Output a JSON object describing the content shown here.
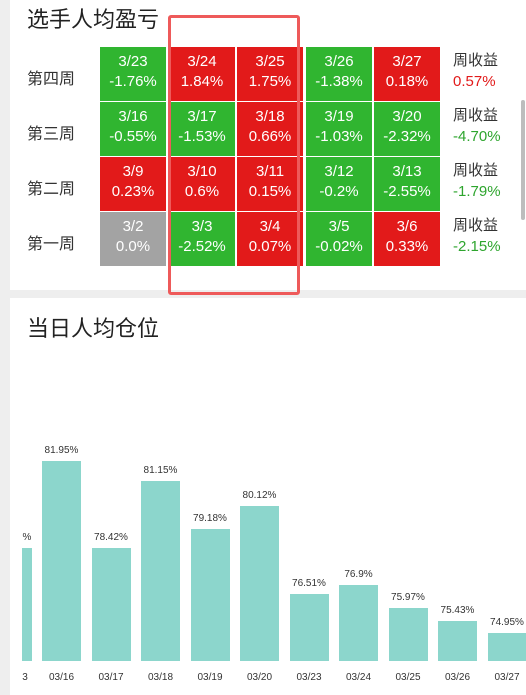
{
  "sections": {
    "profit_title": "选手人均盈亏",
    "position_title": "当日人均仓位"
  },
  "weeks": [
    {
      "label": "第四周",
      "weekly_label": "周收益",
      "weekly_value": "0.57%",
      "weekly_color": "red",
      "days": [
        {
          "date": "3/23",
          "pct": "-1.76%",
          "color": "green"
        },
        {
          "date": "3/24",
          "pct": "1.84%",
          "color": "red"
        },
        {
          "date": "3/25",
          "pct": "1.75%",
          "color": "red"
        },
        {
          "date": "3/26",
          "pct": "-1.38%",
          "color": "green"
        },
        {
          "date": "3/27",
          "pct": "0.18%",
          "color": "red"
        }
      ]
    },
    {
      "label": "第三周",
      "weekly_label": "周收益",
      "weekly_value": "-4.70%",
      "weekly_color": "green",
      "days": [
        {
          "date": "3/16",
          "pct": "-0.55%",
          "color": "green"
        },
        {
          "date": "3/17",
          "pct": "-1.53%",
          "color": "green"
        },
        {
          "date": "3/18",
          "pct": "0.66%",
          "color": "red"
        },
        {
          "date": "3/19",
          "pct": "-1.03%",
          "color": "green"
        },
        {
          "date": "3/20",
          "pct": "-2.32%",
          "color": "green"
        }
      ]
    },
    {
      "label": "第二周",
      "weekly_label": "周收益",
      "weekly_value": "-1.79%",
      "weekly_color": "green",
      "days": [
        {
          "date": "3/9",
          "pct": "0.23%",
          "color": "red"
        },
        {
          "date": "3/10",
          "pct": "0.6%",
          "color": "red"
        },
        {
          "date": "3/11",
          "pct": "0.15%",
          "color": "red"
        },
        {
          "date": "3/12",
          "pct": "-0.2%",
          "color": "green"
        },
        {
          "date": "3/13",
          "pct": "-2.55%",
          "color": "green"
        }
      ]
    },
    {
      "label": "第一周",
      "weekly_label": "周收益",
      "weekly_value": "-2.15%",
      "weekly_color": "green",
      "days": [
        {
          "date": "3/2",
          "pct": "0.0%",
          "color": "gray"
        },
        {
          "date": "3/3",
          "pct": "-2.52%",
          "color": "green"
        },
        {
          "date": "3/4",
          "pct": "0.07%",
          "color": "red"
        },
        {
          "date": "3/5",
          "pct": "-0.02%",
          "color": "green"
        },
        {
          "date": "3/6",
          "pct": "0.33%",
          "color": "red"
        }
      ]
    }
  ],
  "chart_data": {
    "type": "bar",
    "title": "当日人均仓位",
    "categories": [
      "03/16",
      "03/17",
      "03/18",
      "03/19",
      "03/20",
      "03/23",
      "03/24",
      "03/25",
      "03/26",
      "03/27"
    ],
    "values": [
      81.95,
      78.42,
      81.15,
      79.18,
      80.12,
      76.51,
      76.9,
      75.97,
      75.43,
      74.95
    ],
    "value_labels": [
      "81.95%",
      "78.42%",
      "81.15%",
      "79.18%",
      "80.12%",
      "76.51%",
      "76.9%",
      "75.97%",
      "75.43%",
      "74.95%"
    ],
    "partial_left_label": "%",
    "partial_left_tick": "3",
    "ylim": [
      73.8,
      82.8
    ],
    "bar_color": "#8cd6cc"
  }
}
